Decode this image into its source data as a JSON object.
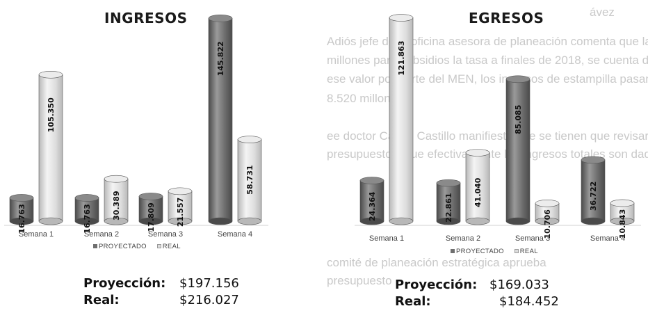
{
  "background_text": [
    "ávez",
    "Adiós jefe de la oficina asesora de planeación comenta que las pruebas",
    "millones para subsidios la tasa a finales de 2018, se cuenta desde",
    "ese valor por parte del MEN, los ingresos de estampilla pasan de la media",
    "8.520 millones.",
    "ee doctor Carlos Castillo manifiesta que se tienen que revisar algu",
    "presupuesto y que efectivamente los ingresos totales son dados prin",
    "comité de planeación estratégica aprueba",
    "presupuesto"
  ],
  "charts": [
    {
      "id": "ingresos",
      "title": "INGRESOS",
      "legend": [
        "PROYECTADO",
        "REAL"
      ],
      "summary": {
        "projection_label": "Proyección:",
        "projection_value": "$197.156",
        "real_label": "Real:",
        "real_value": "$216.027"
      }
    },
    {
      "id": "egresos",
      "title": "EGRESOS",
      "legend": [
        "PROYECTADO",
        "REAL"
      ],
      "summary": {
        "projection_label": "Proyección:",
        "projection_value": "$169.033",
        "real_label": "Real:",
        "real_value": "$184.452"
      }
    }
  ],
  "colors": {
    "proyectado": "#6f6f6f",
    "real": "#dcdcdc"
  },
  "chart_data": [
    {
      "type": "bar",
      "title": "INGRESOS",
      "categories": [
        "Semana 1",
        "Semana 2",
        "Semana 3",
        "Semana 4"
      ],
      "series": [
        {
          "name": "PROYECTADO",
          "values": [
            16.763,
            16.763,
            17.809,
            145.822
          ],
          "labels": [
            "16.763",
            "16.763",
            "17.809",
            "145.822"
          ]
        },
        {
          "name": "REAL",
          "values": [
            105.35,
            30.389,
            21.557,
            58.731
          ],
          "labels": [
            "105.350",
            "30.389",
            "21.557",
            "58.731"
          ]
        }
      ],
      "legend_position": "bottom",
      "grid": false
    },
    {
      "type": "bar",
      "title": "EGRESOS",
      "categories": [
        "Semana 1",
        "Semana 2",
        "Semana 3",
        "Semana 4"
      ],
      "series": [
        {
          "name": "PROYECTADO",
          "values": [
            24.364,
            22.861,
            85.085,
            36.722
          ],
          "labels": [
            "24.364",
            "22.861",
            "85.085",
            "36.722"
          ]
        },
        {
          "name": "REAL",
          "values": [
            121.863,
            41.04,
            10.706,
            10.843
          ],
          "labels": [
            "121.863",
            "41.040",
            "10.706",
            "10.843"
          ]
        }
      ],
      "legend_position": "bottom",
      "grid": false
    }
  ]
}
